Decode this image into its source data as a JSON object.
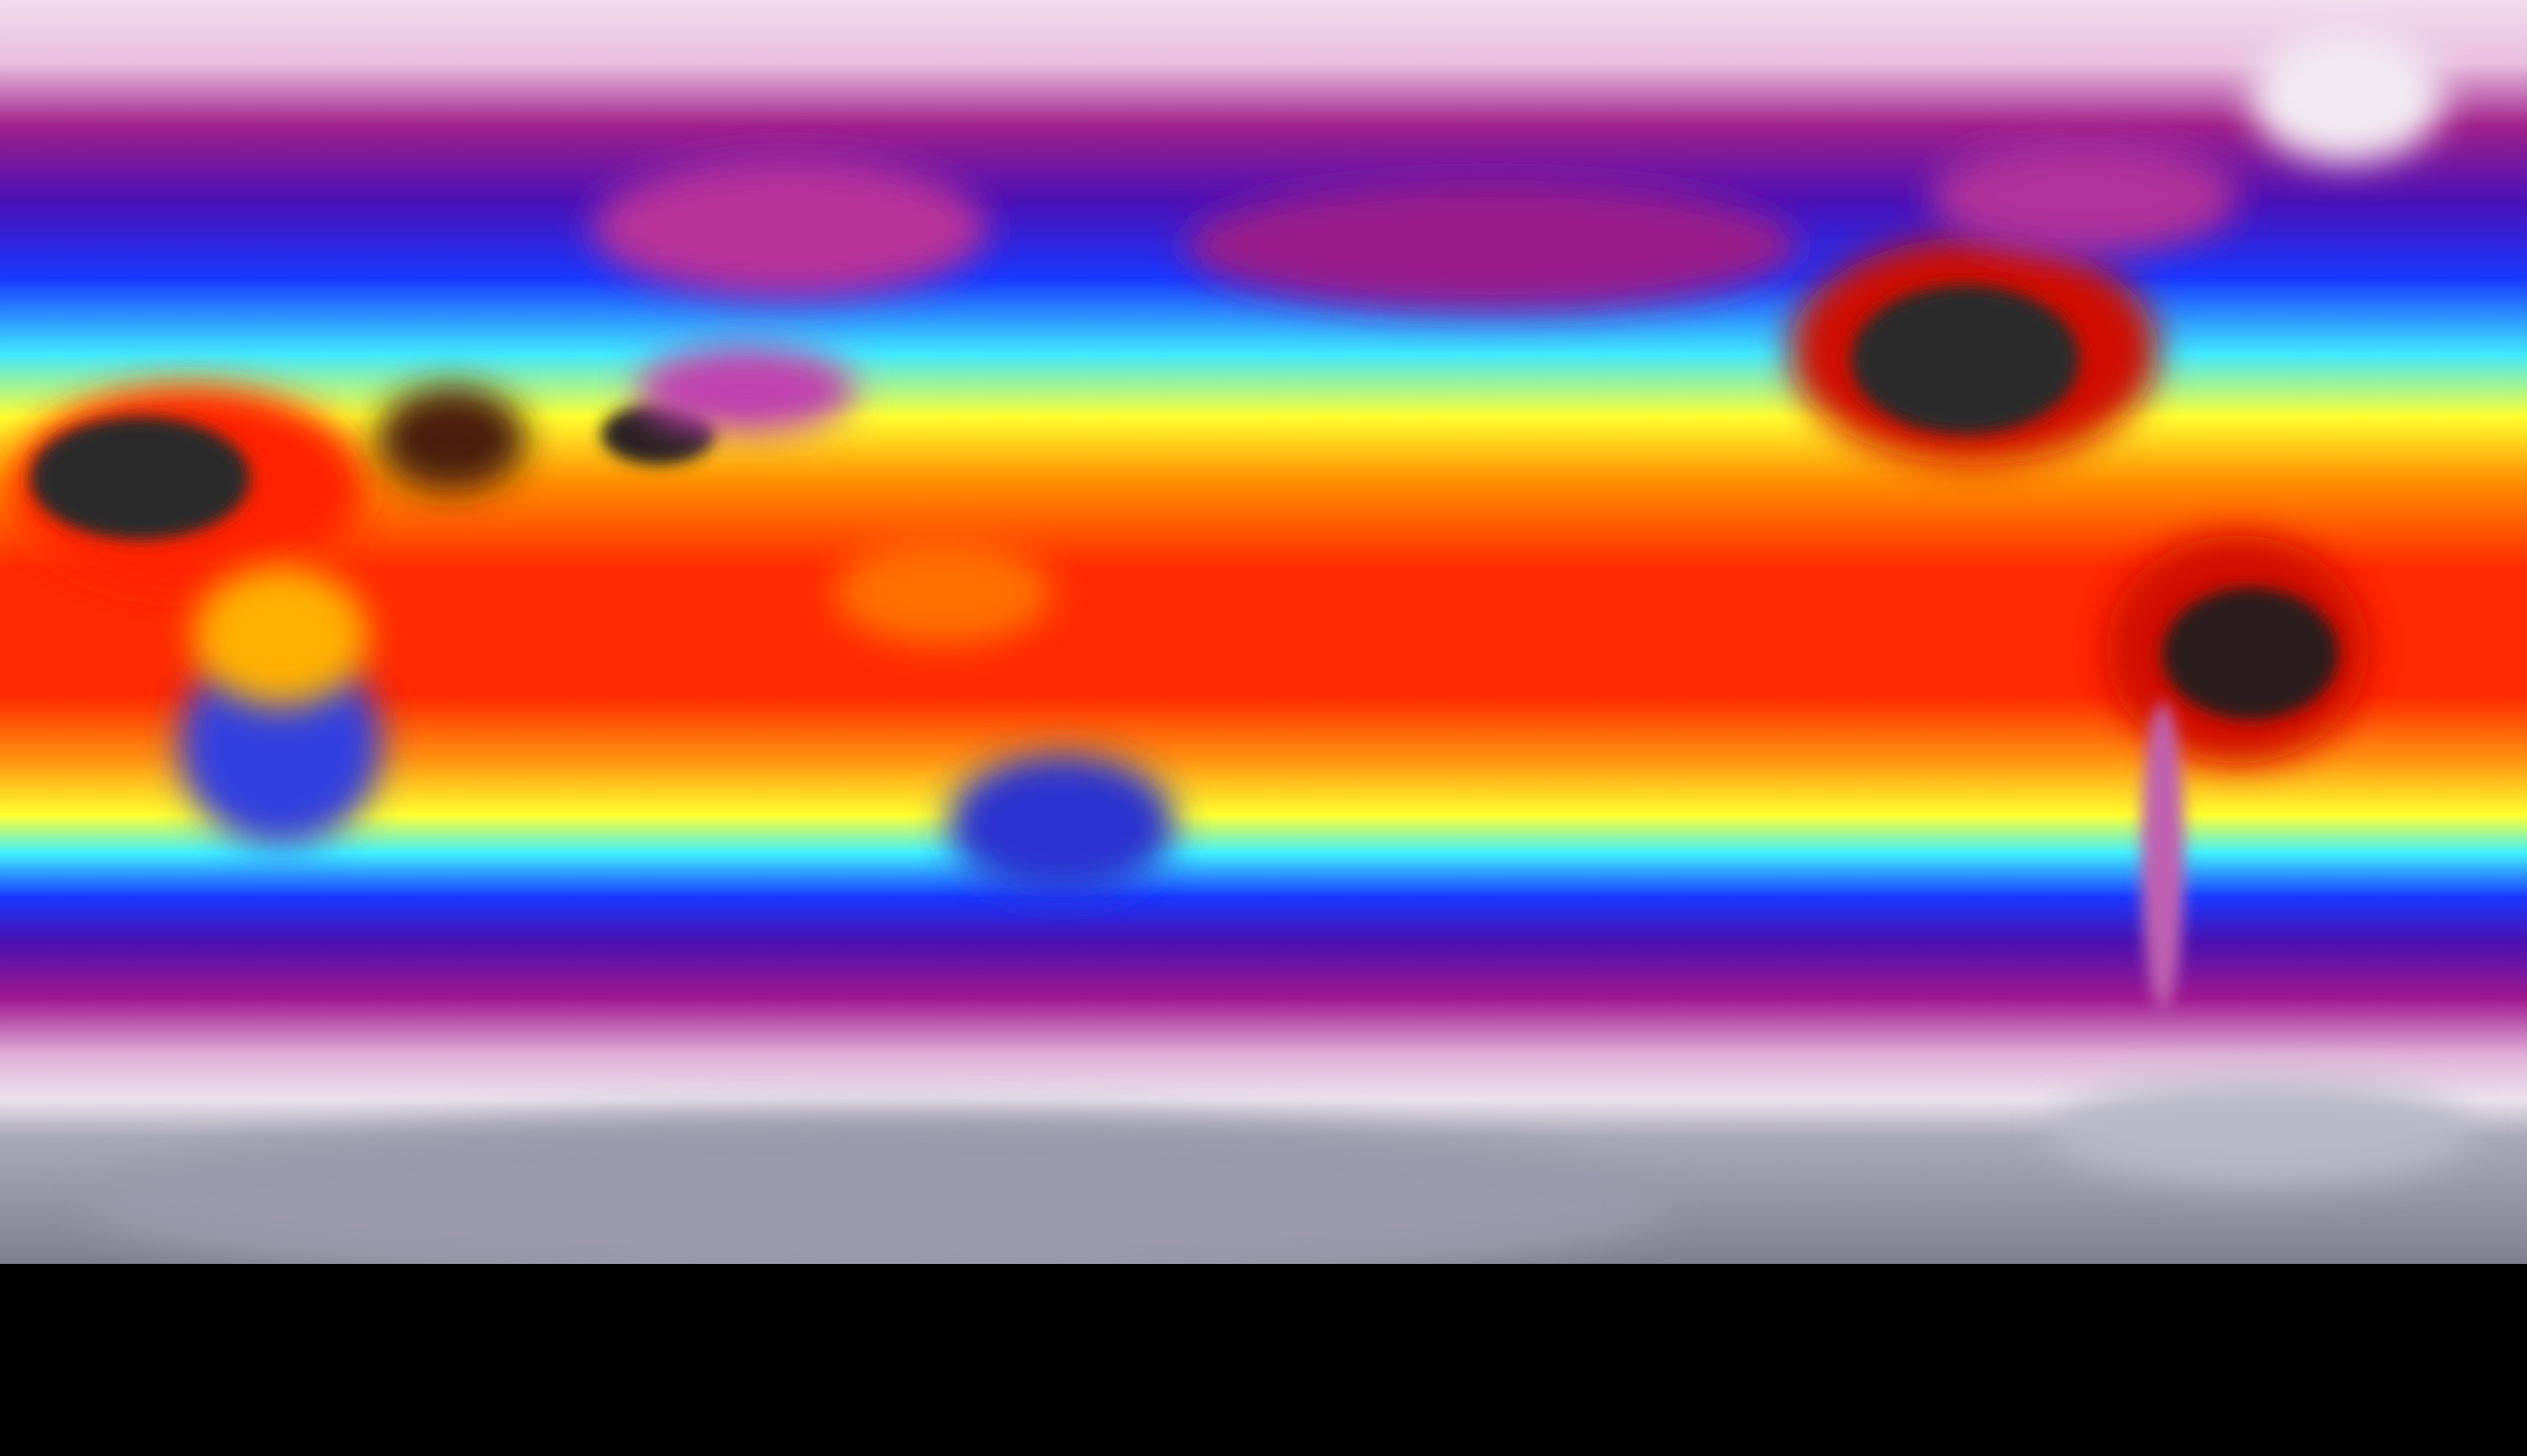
{
  "map": {
    "projection": "equirectangular",
    "palette": {
      "polar_light": "#f2dcec",
      "magenta": "#a0208a",
      "blue": "#1838ff",
      "cyan": "#40e8ff",
      "yellow": "#ffff30",
      "orange": "#ff9000",
      "red": "#ff1a00",
      "hot_dark": "#2a2a2a",
      "ice_gray": "#9a9aac"
    }
  }
}
